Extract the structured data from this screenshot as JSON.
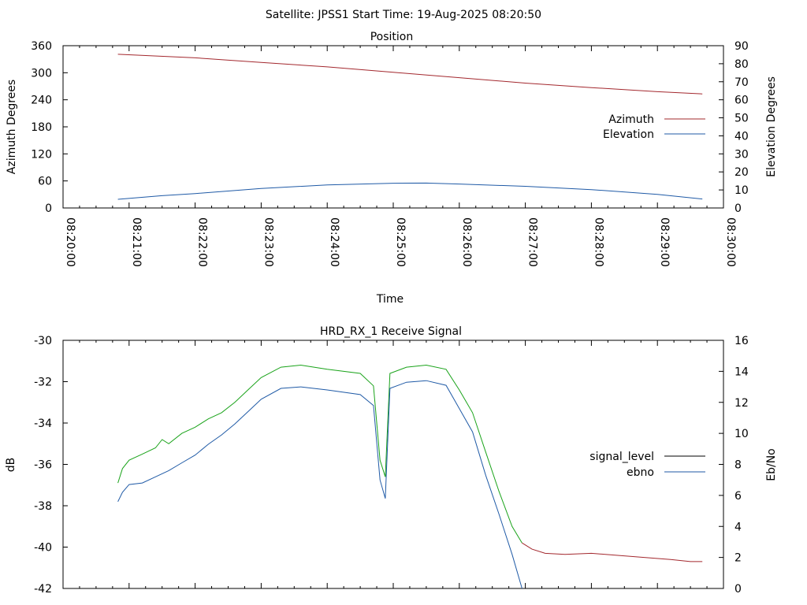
{
  "header": {
    "title": "Satellite: JPSS1    Start Time: 19-Aug-2025 08:20:50"
  },
  "chart_data": [
    {
      "type": "line",
      "title": "Position",
      "xlabel": "Time",
      "ylabel": "Azimuth Degrees",
      "y2label": "Elevation Degrees",
      "x_ticks": [
        "08:20:00",
        "08:21:00",
        "08:22:00",
        "08:23:00",
        "08:24:00",
        "08:25:00",
        "08:26:00",
        "08:27:00",
        "08:28:00",
        "08:29:00",
        "08:30:00"
      ],
      "xlim_minutes": [
        0,
        10
      ],
      "ylim": [
        0,
        360
      ],
      "y_ticks": [
        0,
        60,
        120,
        180,
        240,
        300,
        360
      ],
      "y2lim": [
        0,
        90
      ],
      "y2_ticks": [
        0,
        10,
        20,
        30,
        40,
        50,
        60,
        70,
        80,
        90
      ],
      "legend": "right",
      "series": [
        {
          "name": "Azimuth",
          "axis": "y",
          "color": "#a3282e",
          "x": [
            0.83,
            2,
            3,
            4,
            5,
            6,
            7,
            8,
            9,
            9.68
          ],
          "values": [
            341,
            333,
            323,
            313,
            301,
            289,
            277,
            267,
            258,
            253
          ]
        },
        {
          "name": "Elevation",
          "axis": "y2",
          "color": "#1f5aa6",
          "x": [
            0.83,
            1.5,
            2,
            3,
            4,
            5,
            5.5,
            6,
            7,
            8,
            9,
            9.68
          ],
          "values": [
            4.8,
            6.8,
            8.0,
            10.8,
            12.8,
            13.7,
            13.8,
            13.3,
            12.0,
            10.2,
            7.5,
            5.0
          ]
        }
      ]
    },
    {
      "type": "line",
      "title": "HRD_RX_1 Receive Signal",
      "xlabel": "",
      "ylabel": "dB",
      "y2label": "Eb/No",
      "xlim_minutes": [
        0,
        10
      ],
      "ylim": [
        -42,
        -30
      ],
      "y_ticks": [
        -42,
        -40,
        -38,
        -36,
        -34,
        -32,
        -30
      ],
      "y2lim": [
        0,
        16
      ],
      "y2_ticks": [
        0,
        2,
        4,
        6,
        8,
        10,
        12,
        14,
        16
      ],
      "legend": "right",
      "series": [
        {
          "name": "signal_level",
          "axis": "y",
          "color": "#000000",
          "segments": [
            {
              "color": "#1aa31a",
              "x": [
                0.83,
                0.9,
                1.0,
                1.2,
                1.4,
                1.5,
                1.6,
                1.8,
                2.0,
                2.2,
                2.4,
                2.6,
                2.8,
                3.0,
                3.3,
                3.6,
                4.0,
                4.5,
                4.7,
                4.8,
                4.88,
                4.95,
                5.2,
                5.5,
                5.8,
                6.0,
                6.2,
                6.4,
                6.6,
                6.8,
                6.95
              ],
              "values": [
                -36.9,
                -36.2,
                -35.8,
                -35.5,
                -35.2,
                -34.8,
                -35.0,
                -34.5,
                -34.2,
                -33.8,
                -33.5,
                -33.0,
                -32.4,
                -31.8,
                -31.3,
                -31.2,
                -31.4,
                -31.6,
                -32.2,
                -35.8,
                -36.6,
                -31.6,
                -31.3,
                -31.2,
                -31.4,
                -32.4,
                -33.5,
                -35.4,
                -37.3,
                -39.0,
                -39.8
              ]
            },
            {
              "color": "#a3282e",
              "x": [
                6.95,
                7.1,
                7.3,
                7.6,
                8.0,
                8.4,
                8.8,
                9.2,
                9.5,
                9.68
              ],
              "values": [
                -39.8,
                -40.1,
                -40.3,
                -40.35,
                -40.3,
                -40.4,
                -40.5,
                -40.6,
                -40.7,
                -40.7
              ]
            }
          ]
        },
        {
          "name": "ebno",
          "axis": "y2",
          "color": "#1f5aa6",
          "x": [
            0.83,
            0.9,
            1.0,
            1.2,
            1.4,
            1.6,
            1.8,
            2.0,
            2.2,
            2.4,
            2.6,
            2.8,
            3.0,
            3.3,
            3.6,
            4.0,
            4.5,
            4.7,
            4.8,
            4.88,
            4.95,
            5.2,
            5.5,
            5.8,
            6.0,
            6.2,
            6.4,
            6.6,
            6.8,
            6.95
          ],
          "values": [
            5.6,
            6.2,
            6.7,
            6.8,
            7.2,
            7.6,
            8.1,
            8.6,
            9.3,
            9.9,
            10.6,
            11.4,
            12.2,
            12.9,
            13.0,
            12.8,
            12.5,
            11.8,
            7.0,
            5.8,
            12.9,
            13.3,
            13.4,
            13.1,
            11.6,
            10.1,
            7.3,
            4.8,
            2.2,
            0.0
          ]
        }
      ]
    }
  ]
}
